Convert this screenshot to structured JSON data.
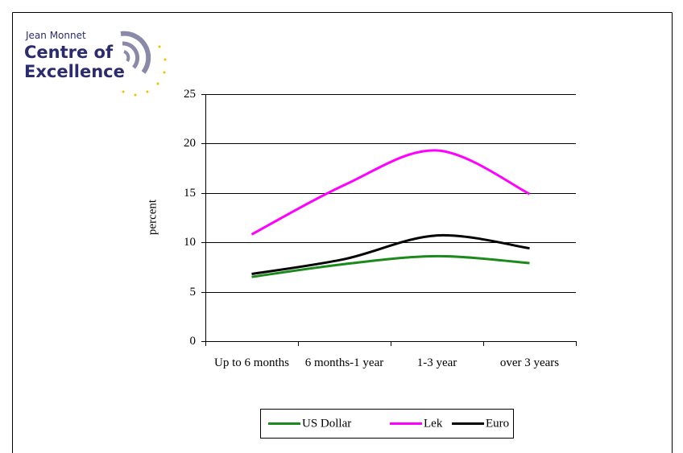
{
  "logo": {
    "line1": "Jean Monnet",
    "line2": "Centre of",
    "line3": "Excellence"
  },
  "chart_data": {
    "type": "line",
    "y_label": "percent",
    "categories": [
      "Up to 6 months",
      "6 months-1 year",
      "1-3 year",
      "over 3 years"
    ],
    "series": [
      {
        "name": "US Dollar",
        "color": "#1a8a1a",
        "values": [
          6.5,
          7.8,
          8.6,
          7.9
        ]
      },
      {
        "name": "Lek",
        "color": "#ff00ff",
        "values": [
          10.8,
          15.8,
          19.3,
          14.9
        ]
      },
      {
        "name": "Euro",
        "color": "#000000",
        "values": [
          6.8,
          8.3,
          10.7,
          9.4
        ]
      }
    ],
    "ylim": [
      0,
      25
    ],
    "yticks": [
      0,
      5,
      10,
      15,
      20,
      25
    ],
    "grid": true,
    "legend": "bottom"
  }
}
